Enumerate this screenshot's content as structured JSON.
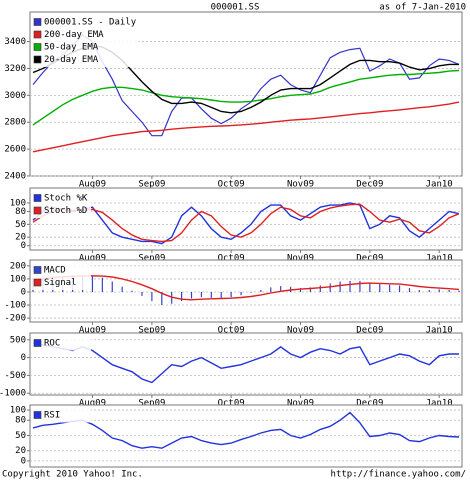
{
  "chart_data": [
    {
      "type": "line",
      "title": "000001.SS",
      "subtitle": "as of  7-Jan-2010",
      "categories": [
        null,
        null,
        null,
        null,
        null,
        null,
        "Aug09",
        null,
        null,
        null,
        null,
        null,
        "Sep09",
        null,
        null,
        null,
        null,
        null,
        null,
        null,
        "Oct09",
        null,
        null,
        null,
        null,
        null,
        null,
        "Nov09",
        null,
        null,
        null,
        null,
        null,
        null,
        "Dec09",
        null,
        null,
        null,
        null,
        null,
        null,
        "Jan10",
        null,
        null
      ],
      "ylim": [
        2400,
        3620
      ],
      "yticks": [
        2400,
        2600,
        2800,
        3000,
        3200,
        3400
      ],
      "grid": true,
      "series": [
        {
          "name": "000001.SS - Daily",
          "color": "#3333cc",
          "values": [
            3080,
            3170,
            3250,
            3300,
            3370,
            3450,
            3400,
            3250,
            3120,
            2960,
            2880,
            2800,
            2700,
            2700,
            2880,
            2980,
            2980,
            2900,
            2830,
            2790,
            2830,
            2900,
            2950,
            3050,
            3120,
            3150,
            3080,
            3040,
            3020,
            3150,
            3280,
            3320,
            3340,
            3350,
            3180,
            3220,
            3270,
            3240,
            3120,
            3130,
            3220,
            3270,
            3260,
            3230
          ]
        },
        {
          "name": "200-day EMA",
          "color": "#e02020",
          "values": [
            2580,
            2595,
            2610,
            2625,
            2640,
            2655,
            2670,
            2685,
            2700,
            2710,
            2720,
            2730,
            2735,
            2740,
            2748,
            2755,
            2760,
            2765,
            2770,
            2772,
            2775,
            2780,
            2785,
            2792,
            2800,
            2808,
            2815,
            2820,
            2825,
            2832,
            2840,
            2848,
            2856,
            2864,
            2870,
            2878,
            2885,
            2892,
            2900,
            2908,
            2915,
            2925,
            2935,
            2950
          ]
        },
        {
          "name": "50-day EMA",
          "color": "#00b000",
          "values": [
            2780,
            2830,
            2880,
            2930,
            2970,
            3000,
            3030,
            3050,
            3060,
            3060,
            3050,
            3040,
            3020,
            3000,
            2990,
            2985,
            2980,
            2975,
            2965,
            2955,
            2950,
            2950,
            2955,
            2965,
            2975,
            2990,
            3000,
            3005,
            3010,
            3030,
            3060,
            3080,
            3100,
            3120,
            3130,
            3140,
            3150,
            3155,
            3155,
            3160,
            3165,
            3170,
            3180,
            3185
          ]
        },
        {
          "name": "20-day EMA",
          "color": "#000000",
          "values": [
            3170,
            3200,
            3240,
            3280,
            3320,
            3350,
            3370,
            3360,
            3320,
            3260,
            3180,
            3100,
            3030,
            2970,
            2940,
            2940,
            2950,
            2940,
            2910,
            2880,
            2870,
            2880,
            2910,
            2950,
            3000,
            3040,
            3050,
            3050,
            3050,
            3080,
            3130,
            3180,
            3230,
            3260,
            3260,
            3250,
            3250,
            3240,
            3210,
            3190,
            3200,
            3220,
            3230,
            3230
          ]
        }
      ]
    },
    {
      "type": "line",
      "ylim": [
        -10,
        135
      ],
      "yticks": [
        0,
        20,
        50,
        80,
        100
      ],
      "grid": true,
      "series": [
        {
          "name": "Stoch %K",
          "color": "#2233dd",
          "values": [
            60,
            80,
            90,
            85,
            80,
            85,
            90,
            60,
            30,
            20,
            15,
            10,
            10,
            5,
            20,
            70,
            90,
            70,
            40,
            20,
            15,
            30,
            50,
            80,
            95,
            95,
            70,
            60,
            75,
            90,
            95,
            95,
            100,
            95,
            40,
            50,
            70,
            65,
            35,
            20,
            40,
            60,
            80,
            75
          ]
        },
        {
          "name": "Stoch %D",
          "color": "#e02020",
          "values": [
            55,
            70,
            80,
            85,
            83,
            83,
            85,
            78,
            60,
            40,
            25,
            15,
            12,
            10,
            12,
            30,
            60,
            80,
            70,
            45,
            25,
            20,
            30,
            50,
            75,
            90,
            85,
            70,
            65,
            80,
            88,
            93,
            96,
            97,
            80,
            60,
            55,
            62,
            55,
            35,
            30,
            45,
            65,
            75
          ]
        }
      ]
    },
    {
      "type": "line",
      "ylim": [
        -230,
        245
      ],
      "yticks": [
        -200,
        -100,
        0,
        100,
        200
      ],
      "grid": true,
      "series": [
        {
          "name": "MACD",
          "color": "#3344cc",
          "type": "bar",
          "values": [
            110,
            120,
            125,
            125,
            130,
            130,
            125,
            110,
            80,
            40,
            10,
            -30,
            -70,
            -100,
            -90,
            -70,
            -50,
            -40,
            -45,
            -50,
            -40,
            -25,
            -5,
            15,
            35,
            45,
            40,
            30,
            35,
            50,
            65,
            80,
            85,
            85,
            70,
            60,
            55,
            50,
            30,
            15,
            15,
            20,
            15,
            10
          ]
        },
        {
          "name": "Signal",
          "color": "#e02020",
          "values": [
            90,
            100,
            110,
            115,
            120,
            123,
            124,
            122,
            115,
            100,
            80,
            55,
            25,
            -10,
            -40,
            -55,
            -60,
            -55,
            -52,
            -50,
            -48,
            -42,
            -35,
            -22,
            -8,
            5,
            15,
            22,
            27,
            33,
            40,
            50,
            58,
            65,
            68,
            66,
            63,
            60,
            52,
            42,
            35,
            30,
            25,
            20
          ]
        }
      ]
    },
    {
      "type": "line",
      "ylim": [
        -1050,
        690
      ],
      "yticks": [
        -1000,
        -500,
        0,
        500
      ],
      "grid": true,
      "series": [
        {
          "name": "ROC",
          "color": "#2233dd",
          "values": [
            400,
            350,
            300,
            250,
            200,
            300,
            200,
            0,
            -200,
            -300,
            -400,
            -600,
            -700,
            -450,
            -200,
            -250,
            -100,
            0,
            -150,
            -300,
            -250,
            -200,
            -100,
            0,
            100,
            300,
            100,
            0,
            150,
            250,
            200,
            100,
            250,
            300,
            -200,
            -100,
            0,
            100,
            50,
            -100,
            -200,
            50,
            100,
            100
          ]
        }
      ]
    },
    {
      "type": "line",
      "ylim": [
        -12,
        110
      ],
      "yticks": [
        0,
        20,
        50,
        80,
        100
      ],
      "grid": true,
      "series": [
        {
          "name": "RSI",
          "color": "#2233dd",
          "values": [
            65,
            70,
            72,
            75,
            78,
            80,
            72,
            60,
            45,
            40,
            30,
            25,
            28,
            25,
            35,
            45,
            48,
            40,
            35,
            32,
            35,
            42,
            48,
            55,
            60,
            62,
            50,
            45,
            52,
            62,
            68,
            80,
            95,
            75,
            48,
            50,
            55,
            52,
            40,
            38,
            45,
            50,
            48,
            47
          ]
        }
      ]
    }
  ],
  "footer": {
    "copyright": "Copyright 2010 Yahoo! Inc.",
    "url": "http://finance.yahoo.com/"
  }
}
